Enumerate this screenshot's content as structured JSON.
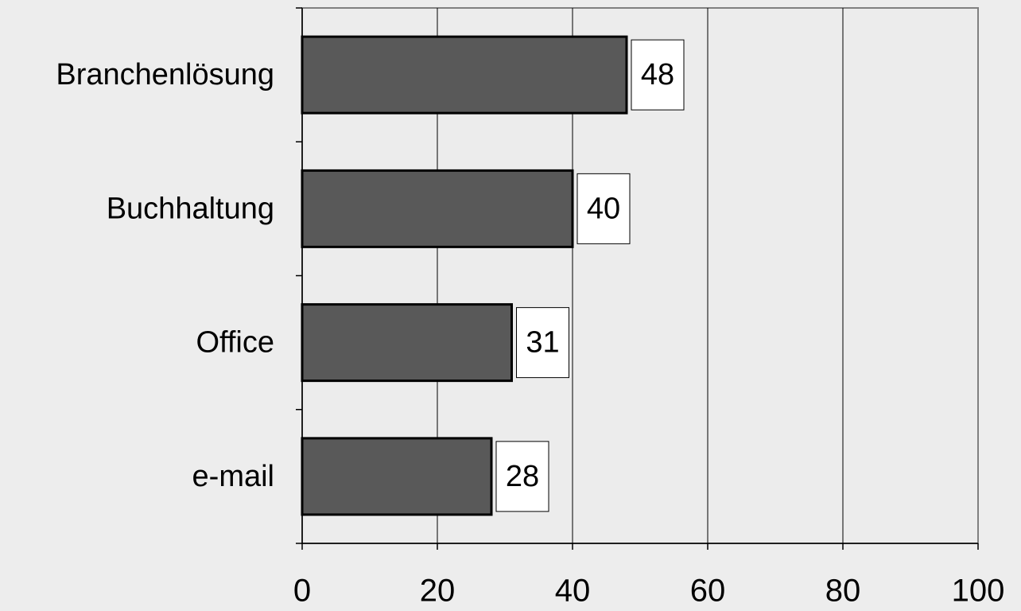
{
  "chart_data": {
    "type": "bar",
    "orientation": "horizontal",
    "categories": [
      "Branchenlösung",
      "Buchhaltung",
      "Office",
      "e-mail"
    ],
    "values": [
      48,
      40,
      31,
      28
    ],
    "color": "#595959",
    "xlim": [
      0,
      100
    ],
    "xticks": [
      0,
      20,
      40,
      60,
      80,
      100
    ],
    "grid": true
  }
}
